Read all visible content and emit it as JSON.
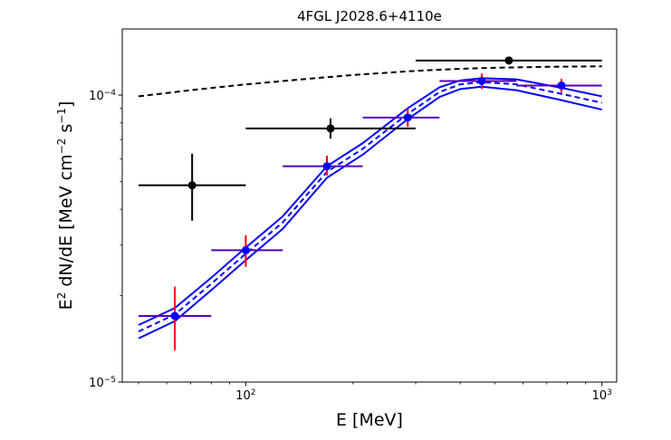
{
  "chart_data": {
    "type": "scatter",
    "title": "4FGL J2028.6+4110e",
    "xlabel": "E [MeV]",
    "ylabel_parts": {
      "pre": "E",
      "pre_sup": "2",
      "mid1": " dN/dE [MeV cm",
      "sup1": "−2",
      "mid2": " s",
      "sup2": "−1",
      "post": "]"
    },
    "xscale": "log",
    "yscale": "log",
    "xlim": [
      45,
      1100
    ],
    "ylim": [
      1e-05,
      0.00017
    ],
    "x_ticks": [
      {
        "value": 100,
        "base": "10",
        "exp": "2"
      },
      {
        "value": 1000,
        "base": "10",
        "exp": "3"
      }
    ],
    "y_ticks": [
      {
        "value": 1e-05,
        "base": "10",
        "exp": "−5"
      },
      {
        "value": 0.0001,
        "base": "10",
        "exp": "−4"
      }
    ],
    "colors": {
      "black": "#000000",
      "blue": "#0000ff",
      "red": "#ff0000",
      "purple": "#5500bb"
    },
    "series": [
      {
        "name": "black points",
        "color": "#000000",
        "points": [
          {
            "x": 70.7,
            "y": 4.85e-05,
            "xlo": 50,
            "xhi": 100,
            "ylo": 3.65e-05,
            "yhi": 6.25e-05
          },
          {
            "x": 173,
            "y": 7.65e-05,
            "xlo": 100,
            "xhi": 300,
            "ylo": 7.05e-05,
            "yhi": 8.3e-05
          },
          {
            "x": 548,
            "y": 0.000132,
            "xlo": 300,
            "xhi": 1000,
            "ylo": 0.000132,
            "yhi": 0.000132
          }
        ]
      },
      {
        "name": "blue points",
        "color": "#0000ff",
        "points": [
          {
            "x": 63.2,
            "y": 1.7e-05,
            "xlo": 50,
            "xhi": 80,
            "ylo": 1.29e-05,
            "yhi": 2.15e-05
          },
          {
            "x": 100,
            "y": 2.88e-05,
            "xlo": 80,
            "xhi": 127,
            "ylo": 2.52e-05,
            "yhi": 3.25e-05
          },
          {
            "x": 169,
            "y": 5.65e-05,
            "xlo": 127,
            "xhi": 213,
            "ylo": 5.25e-05,
            "yhi": 6.15e-05
          },
          {
            "x": 285,
            "y": 8.35e-05,
            "xlo": 213,
            "xhi": 350,
            "ylo": 7.75e-05,
            "yhi": 8.95e-05
          },
          {
            "x": 460,
            "y": 0.000112,
            "xlo": 350,
            "xhi": 575,
            "ylo": 0.000105,
            "yhi": 0.000119
          },
          {
            "x": 770,
            "y": 0.000108,
            "xlo": 575,
            "xhi": 1000,
            "ylo": 0.000102,
            "yhi": 0.000114
          }
        ]
      }
    ],
    "curves": [
      {
        "name": "black dashed model",
        "color": "#000000",
        "style": "dashed",
        "x": [
          50,
          70,
          100,
          150,
          200,
          300,
          400,
          500,
          700,
          1000
        ],
        "y": [
          9.9e-05,
          0.000104,
          0.000109,
          0.000114,
          0.0001175,
          0.0001215,
          0.0001235,
          0.0001245,
          0.0001255,
          0.000126
        ]
      },
      {
        "name": "blue dashed best-fit",
        "color": "#0000ff",
        "style": "dashed",
        "x": [
          50,
          63.2,
          80,
          100,
          127,
          169,
          213,
          285,
          350,
          400,
          460,
          575,
          770,
          1000
        ],
        "y": [
          1.5e-05,
          1.72e-05,
          2.2e-05,
          2.8e-05,
          3.6e-05,
          5.4e-05,
          6.5e-05,
          8.6e-05,
          0.0001025,
          0.000109,
          0.000111,
          0.000109,
          0.000101,
          9.4e-05
        ]
      },
      {
        "name": "blue upper band",
        "color": "#0000ff",
        "style": "solid",
        "x": [
          50,
          63.2,
          80,
          100,
          127,
          169,
          213,
          285,
          350,
          400,
          460,
          575,
          770,
          1000
        ],
        "y": [
          1.58e-05,
          1.81e-05,
          2.31e-05,
          2.94e-05,
          3.78e-05,
          5.65e-05,
          6.8e-05,
          9e-05,
          0.0001065,
          0.0001125,
          0.0001145,
          0.0001135,
          0.000106,
          9.9e-05
        ]
      },
      {
        "name": "blue lower band",
        "color": "#0000ff",
        "style": "solid",
        "x": [
          50,
          63.2,
          80,
          100,
          127,
          169,
          213,
          285,
          350,
          400,
          460,
          575,
          770,
          1000
        ],
        "y": [
          1.42e-05,
          1.63e-05,
          2.09e-05,
          2.66e-05,
          3.42e-05,
          5.15e-05,
          6.2e-05,
          8.25e-05,
          9.85e-05,
          0.000105,
          0.000107,
          0.000104,
          9.6e-05,
          8.9e-05
        ]
      }
    ]
  }
}
